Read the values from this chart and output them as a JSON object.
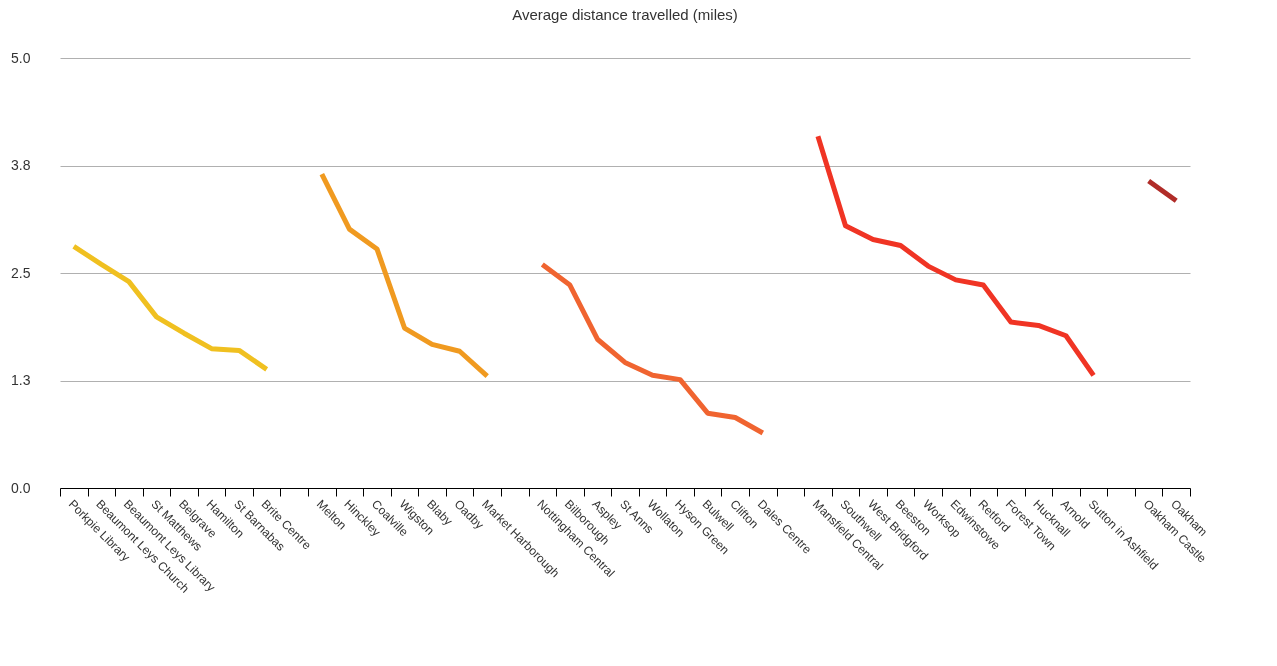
{
  "chart_data": {
    "type": "line",
    "title": "Average distance travelled (miles)",
    "categories": [
      "Porkpie Library",
      "Beaumont Leys Church",
      "Beaumont Leys Library",
      "St Matthews",
      "Belgrave",
      "Hamilton",
      "St Barnabas",
      "Brite Centre",
      null,
      "Melton",
      "Hinckley",
      "Coalville",
      "Wigston",
      "Blaby",
      "Oadby",
      "Market Harborough",
      null,
      "Nottingham Central",
      "Bilborough",
      "Aspley",
      "St Anns",
      "Wollaton",
      "Hyson Green",
      "Bulwell",
      "Clifton",
      "Dales Centre",
      null,
      "Mansfield Central",
      "Southwell",
      "West Bridgford",
      "Beeston",
      "Worksop",
      "Edwinstowe",
      "Retford",
      "Forest Town",
      "Hucknall",
      "Arnold",
      "Sutton in Ashfield",
      null,
      "Oakham Castle",
      "Oakham"
    ],
    "series": [
      {
        "color": "#f0c020",
        "values": [
          2.81,
          2.6,
          2.4,
          1.99,
          1.8,
          1.62,
          1.6,
          1.38,
          null,
          null,
          null,
          null,
          null,
          null,
          null,
          null,
          null,
          null,
          null,
          null,
          null,
          null,
          null,
          null,
          null,
          null,
          null,
          null,
          null,
          null,
          null,
          null,
          null,
          null,
          null,
          null,
          null,
          null,
          null,
          null,
          null
        ]
      },
      {
        "color": "#f09a20",
        "values": [
          null,
          null,
          null,
          null,
          null,
          null,
          null,
          null,
          null,
          3.65,
          3.01,
          2.78,
          1.86,
          1.67,
          1.59,
          1.3,
          null,
          null,
          null,
          null,
          null,
          null,
          null,
          null,
          null,
          null,
          null,
          null,
          null,
          null,
          null,
          null,
          null,
          null,
          null,
          null,
          null,
          null,
          null,
          null,
          null
        ]
      },
      {
        "color": "#f06430",
        "values": [
          null,
          null,
          null,
          null,
          null,
          null,
          null,
          null,
          null,
          null,
          null,
          null,
          null,
          null,
          null,
          null,
          null,
          2.6,
          2.36,
          1.73,
          1.46,
          1.31,
          1.26,
          0.87,
          0.82,
          0.64,
          null,
          null,
          null,
          null,
          null,
          null,
          null,
          null,
          null,
          null,
          null,
          null,
          null,
          null,
          null
        ]
      },
      {
        "color": "#f03424",
        "values": [
          null,
          null,
          null,
          null,
          null,
          null,
          null,
          null,
          null,
          null,
          null,
          null,
          null,
          null,
          null,
          null,
          null,
          null,
          null,
          null,
          null,
          null,
          null,
          null,
          null,
          null,
          null,
          4.09,
          3.05,
          2.89,
          2.82,
          2.58,
          2.42,
          2.36,
          1.93,
          1.89,
          1.77,
          1.31,
          null,
          null,
          null
        ]
      },
      {
        "color": "#b02c28",
        "values": [
          null,
          null,
          null,
          null,
          null,
          null,
          null,
          null,
          null,
          null,
          null,
          null,
          null,
          null,
          null,
          null,
          null,
          null,
          null,
          null,
          null,
          null,
          null,
          null,
          null,
          null,
          null,
          null,
          null,
          null,
          null,
          null,
          null,
          null,
          null,
          null,
          null,
          null,
          null,
          3.57,
          3.34
        ]
      }
    ],
    "ylim": [
      0,
      5
    ],
    "yticks": [
      {
        "value": 0,
        "label": "0.0"
      },
      {
        "value": 1.25,
        "label": "1.3"
      },
      {
        "value": 2.5,
        "label": "2.5"
      },
      {
        "value": 3.75,
        "label": "3.8"
      },
      {
        "value": 5,
        "label": "5.0"
      }
    ],
    "grid": "y",
    "line_style": "solid",
    "marker": "none"
  }
}
